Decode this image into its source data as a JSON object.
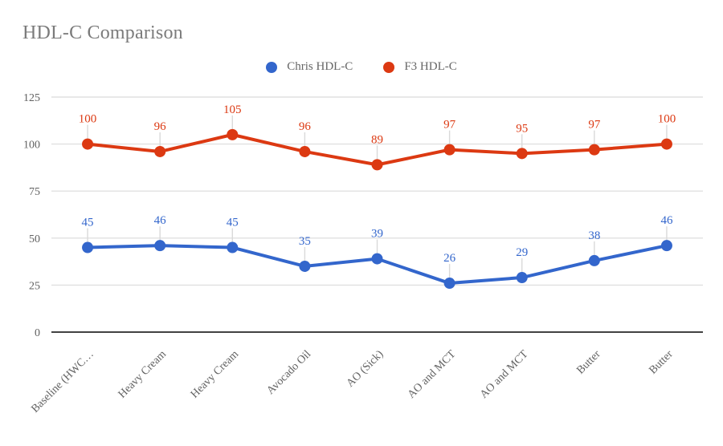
{
  "title": "HDL-C Comparison",
  "legend": {
    "items": [
      {
        "label": "Chris HDL-C",
        "color": "#3366CC"
      },
      {
        "label": "F3 HDL-C",
        "color": "#DC3912"
      }
    ]
  },
  "chart_data": {
    "type": "line",
    "title": "HDL-C Comparison",
    "categories": [
      "Baseline (HWC…",
      "Heavy Cream",
      "Heavy Cream",
      "Avocado Oil",
      "AO (Sick)",
      "AO and MCT",
      "AO and MCT",
      "Butter",
      "Butter"
    ],
    "series": [
      {
        "name": "Chris HDL-C",
        "color": "#3366CC",
        "values": [
          45,
          46,
          45,
          35,
          39,
          26,
          29,
          38,
          46
        ]
      },
      {
        "name": "F3 HDL-C",
        "color": "#DC3912",
        "values": [
          100,
          96,
          105,
          96,
          89,
          97,
          95,
          97,
          100
        ]
      }
    ],
    "xlabel": "",
    "ylabel": "",
    "ylim": [
      0,
      125
    ],
    "yticks": [
      0,
      25,
      50,
      75,
      100,
      125
    ],
    "grid": true,
    "legend_position": "top",
    "point_labels": true,
    "x_label_rotation": 45
  },
  "colors": {
    "title_text": "#7b7b7b",
    "legend_text": "#666666",
    "axis_text": "#616161",
    "gridline": "#e0e0e0",
    "baseline": "#424242",
    "stem": "#d9d9d9",
    "background": "#ffffff"
  }
}
